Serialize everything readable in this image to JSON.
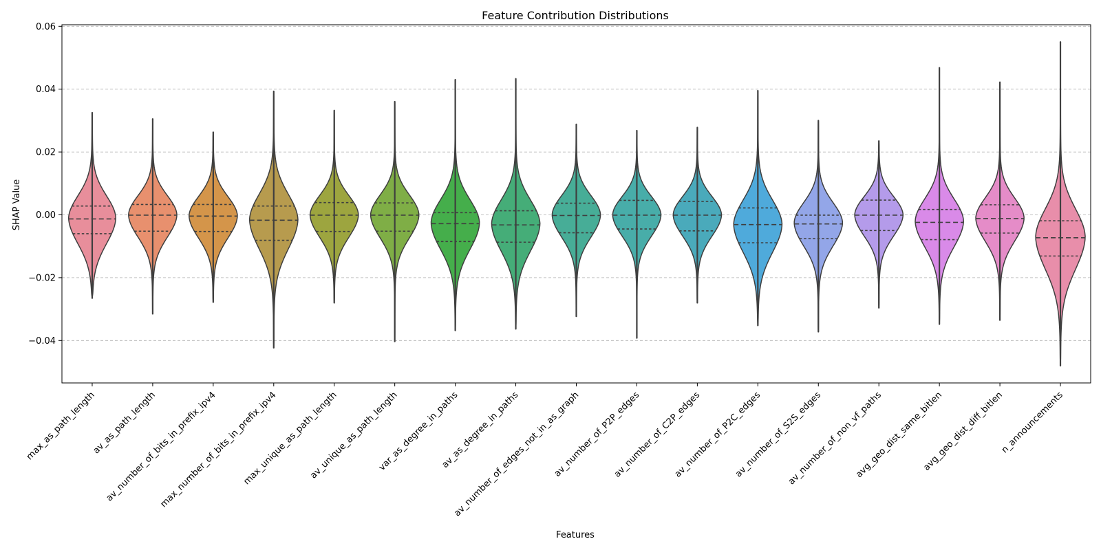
{
  "chart_data": {
    "type": "violin",
    "title": "Feature Contribution Distributions",
    "xlabel": "Features",
    "ylabel": "SHAP Value",
    "ylim": [
      -0.0535,
      0.0605
    ],
    "yticks": [
      -0.04,
      -0.02,
      0.0,
      0.02,
      0.04,
      0.06
    ],
    "ytick_labels": [
      "−0.04",
      "−0.02",
      "0.00",
      "0.02",
      "0.04",
      "0.06"
    ],
    "grid": "y-dashed",
    "series": [
      {
        "name": "max_as_path_length",
        "color": "#e88e9b",
        "min": -0.0265,
        "q1": -0.006,
        "median": -0.0013,
        "q3": 0.0028,
        "max": 0.0325,
        "width": 0.78,
        "peak": -0.001,
        "spread": 0.0075
      },
      {
        "name": "av_as_path_length",
        "color": "#e8906e",
        "min": -0.0315,
        "q1": -0.0052,
        "median": -0.0001,
        "q3": 0.0033,
        "max": 0.0305,
        "width": 0.8,
        "peak": 0.0,
        "spread": 0.0065
      },
      {
        "name": "av_number_of_bits_in_prefix_ipv4",
        "color": "#d4954a",
        "min": -0.0278,
        "q1": -0.0053,
        "median": -0.0004,
        "q3": 0.0033,
        "max": 0.0263,
        "width": 0.8,
        "peak": -0.0003,
        "spread": 0.0065
      },
      {
        "name": "max_number_of_bits_in_prefix_ipv4",
        "color": "#b79b4e",
        "min": -0.0423,
        "q1": -0.0081,
        "median": -0.0017,
        "q3": 0.0028,
        "max": 0.0393,
        "width": 0.8,
        "peak": -0.0015,
        "spread": 0.0085
      },
      {
        "name": "max_unique_as_path_length",
        "color": "#9da53f",
        "min": -0.028,
        "q1": -0.0053,
        "median": -0.0001,
        "q3": 0.0039,
        "max": 0.0332,
        "width": 0.8,
        "peak": 0.0,
        "spread": 0.0065
      },
      {
        "name": "av_unique_as_path_length",
        "color": "#7fae46",
        "min": -0.0403,
        "q1": -0.0052,
        "median": -0.0001,
        "q3": 0.0038,
        "max": 0.036,
        "width": 0.8,
        "peak": 0.0,
        "spread": 0.0067
      },
      {
        "name": "var_as_degree_in_paths",
        "color": "#45ae4b",
        "min": -0.0368,
        "q1": -0.0085,
        "median": -0.0028,
        "q3": 0.0007,
        "max": 0.043,
        "width": 0.8,
        "peak": -0.0025,
        "spread": 0.0078
      },
      {
        "name": "av_as_degree_in_paths",
        "color": "#45ad78",
        "min": -0.0363,
        "q1": -0.0087,
        "median": -0.0032,
        "q3": 0.0013,
        "max": 0.0433,
        "width": 0.8,
        "peak": -0.0028,
        "spread": 0.008
      },
      {
        "name": "av_number_of_edges_not_in_as_graph",
        "color": "#47ad97",
        "min": -0.0323,
        "q1": -0.0057,
        "median": -0.0002,
        "q3": 0.0037,
        "max": 0.0288,
        "width": 0.8,
        "peak": 0.0,
        "spread": 0.0065
      },
      {
        "name": "av_number_of_P2P_edges",
        "color": "#48ada9",
        "min": -0.0392,
        "q1": -0.0045,
        "median": -0.0001,
        "q3": 0.0046,
        "max": 0.0268,
        "width": 0.8,
        "peak": 0.0,
        "spread": 0.0062
      },
      {
        "name": "av_number_of_C2P_edges",
        "color": "#4aaabb",
        "min": -0.028,
        "q1": -0.0051,
        "median": -0.0001,
        "q3": 0.0043,
        "max": 0.0278,
        "width": 0.8,
        "peak": 0.0,
        "spread": 0.0062
      },
      {
        "name": "av_number_of_P2C_edges",
        "color": "#4faadb",
        "min": -0.0352,
        "q1": -0.0089,
        "median": -0.0031,
        "q3": 0.0022,
        "max": 0.0395,
        "width": 0.8,
        "peak": -0.003,
        "spread": 0.0082
      },
      {
        "name": "av_number_of_S2S_edges",
        "color": "#93a6e8",
        "min": -0.0372,
        "q1": -0.0076,
        "median": -0.0029,
        "q3": -0.0001,
        "max": 0.03,
        "width": 0.8,
        "peak": -0.0025,
        "spread": 0.0068
      },
      {
        "name": "av_number_of_non_vf_paths",
        "color": "#b49bea",
        "min": -0.0296,
        "q1": -0.005,
        "median": -0.0001,
        "q3": 0.0047,
        "max": 0.0235,
        "width": 0.8,
        "peak": 0.0,
        "spread": 0.0062
      },
      {
        "name": "avg_geo_dist_same_bitlen",
        "color": "#d98ae8",
        "min": -0.0348,
        "q1": -0.0079,
        "median": -0.0024,
        "q3": 0.0017,
        "max": 0.0468,
        "width": 0.8,
        "peak": -0.002,
        "spread": 0.0075
      },
      {
        "name": "avg_geo_dist_diff_bitlen",
        "color": "#e58cc8",
        "min": -0.0335,
        "q1": -0.0058,
        "median": -0.0012,
        "q3": 0.0032,
        "max": 0.0422,
        "width": 0.8,
        "peak": -0.001,
        "spread": 0.0068
      },
      {
        "name": "n_announcements",
        "color": "#e88eaa",
        "min": -0.048,
        "q1": -0.0131,
        "median": -0.0073,
        "q3": -0.0019,
        "max": 0.055,
        "width": 0.82,
        "peak": -0.007,
        "spread": 0.0095
      }
    ]
  }
}
